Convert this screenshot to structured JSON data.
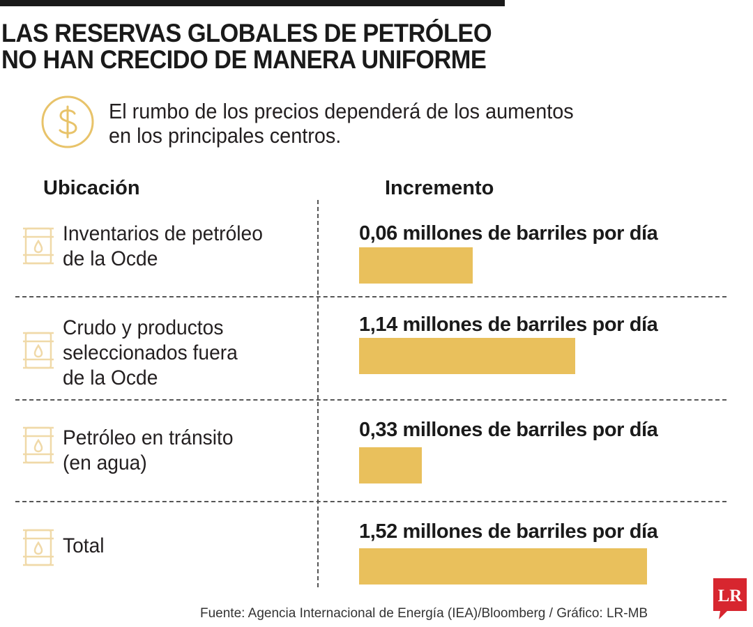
{
  "title": {
    "line1": "LAS RESERVAS GLOBALES DE PETRÓLEO",
    "line2": "NO HAN CRECIDO DE MANERA UNIFORME"
  },
  "subtitle": {
    "line1": "El rumbo de los precios dependerá de los aumentos",
    "line2": "en los principales centros."
  },
  "header": {
    "col1": "Ubicación",
    "col2": "Incremento"
  },
  "rows": [
    {
      "label_lines": [
        "Inventarios de petróleo",
        "de la Ocde"
      ],
      "value_label": "0,06 millones de barriles por día"
    },
    {
      "label_lines": [
        "Crudo y productos",
        "seleccionados fuera",
        "de la Ocde"
      ],
      "value_label": "1,14 millones de barriles por día"
    },
    {
      "label_lines": [
        "Petróleo en tránsito",
        "(en agua)"
      ],
      "value_label": "0,33 millones de barriles por día"
    },
    {
      "label_lines": [
        "Total"
      ],
      "value_label": "1,52 millones de barriles por día"
    }
  ],
  "chart_data": {
    "type": "bar",
    "orientation": "horizontal",
    "categories": [
      "Inventarios de petróleo de la Ocde",
      "Crudo y productos seleccionados fuera de la Ocde",
      "Petróleo en tránsito (en agua)",
      "Total"
    ],
    "values": [
      0.06,
      1.14,
      0.33,
      1.52
    ],
    "unit": "millones de barriles por día",
    "bar_color": "#e9c05c",
    "grid": false,
    "legend": "none"
  },
  "source": "Fuente: Agencia Internacional de Energía (IEA)/Bloomberg / Gráfico: LR-MB",
  "logo": {
    "text": "LR",
    "color": "#d7262f"
  },
  "icons": {
    "subtitle": "dollar-circle-icon",
    "row": "oil-barrel-icon"
  },
  "colors": {
    "accent": "#e9c05c",
    "icon_stroke": "#e8c36a",
    "barrel_stroke": "#f0d9a8",
    "text": "#231f20"
  }
}
